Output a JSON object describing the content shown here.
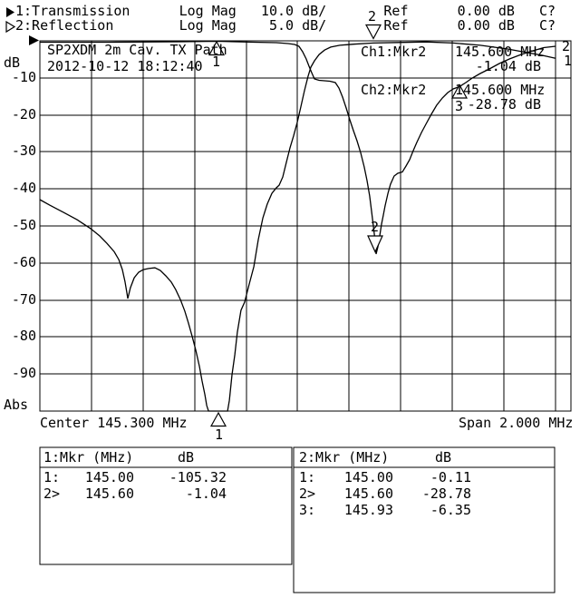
{
  "header": {
    "line1_text": "1:Transmission      Log Mag   10.0 dB/       Ref      0.00 dB   C?",
    "line2_text": "2:Reflection        Log Mag    5.0 dB/       Ref      0.00 dB   C?"
  },
  "graph": {
    "y_unit_label": "dB",
    "y_bottom_label": "Abs",
    "info_line1": "SP2XDM 2m Cav. TX Path",
    "info_line2": "2012-10-12 18:12:40",
    "ch1_readout": {
      "label": "Ch1:Mkr2",
      "freq": "145.600 MHz",
      "value": "-1.04 dB"
    },
    "ch2_readout": {
      "label": "Ch2:Mkr2",
      "freq": "145.600 MHz",
      "value": "-28.78 dB"
    },
    "trace_end_labels": {
      "trace1": "1",
      "trace2": "2"
    },
    "marker_digits": {
      "t1m1": "1",
      "t1m2": "2",
      "t2m1": "1",
      "t2m2": "2",
      "t2m3": "3"
    },
    "x_axis_left": "Center 145.300 MHz",
    "x_axis_right": "Span 2.000 MHz"
  },
  "tables": {
    "ch1": {
      "header_label": "1:Mkr (MHz)",
      "header_db": "dB",
      "rows": [
        [
          "1:",
          "145.00",
          "-105.32"
        ],
        [
          "2>",
          "145.60",
          "-1.04"
        ]
      ]
    },
    "ch2": {
      "header_label": "2:Mkr (MHz)",
      "header_db": "dB",
      "rows": [
        [
          "1:",
          "145.00",
          "-0.11"
        ],
        [
          "2>",
          "145.60",
          "-28.78"
        ],
        [
          "3:",
          "145.93",
          "-6.35"
        ]
      ]
    }
  },
  "chart_data": {
    "type": "line",
    "title": "SP2XDM 2m Cav. TX Path",
    "x_axis": {
      "center_mhz": 145.3,
      "span_mhz": 2.0,
      "start_mhz": 144.3,
      "stop_mhz": 146.3,
      "divisions": 10
    },
    "y_axis": {
      "ref_db": 0.0,
      "divisions": 10,
      "tick_labels": [
        "-10",
        "-20",
        "-30",
        "-40",
        "-50",
        "-60",
        "-70",
        "-80",
        "-90"
      ]
    },
    "markers": [
      {
        "trace": 1,
        "num": 1,
        "mhz": 145.0,
        "db": -105.32
      },
      {
        "trace": 1,
        "num": 2,
        "mhz": 145.6,
        "db": -1.04
      },
      {
        "trace": 2,
        "num": 1,
        "mhz": 145.0,
        "db": -0.11
      },
      {
        "trace": 2,
        "num": 2,
        "mhz": 145.6,
        "db": -28.78
      },
      {
        "trace": 2,
        "num": 3,
        "mhz": 145.93,
        "db": -6.35
      }
    ],
    "series": [
      {
        "name": "Transmission",
        "db_per_div": 10.0,
        "points": [
          [
            144.3,
            -42.9
          ],
          [
            144.339,
            -44.4
          ],
          [
            144.391,
            -46.3
          ],
          [
            144.444,
            -48.3
          ],
          [
            144.497,
            -50.7
          ],
          [
            144.532,
            -52.7
          ],
          [
            144.56,
            -54.7
          ],
          [
            144.588,
            -56.9
          ],
          [
            144.606,
            -59.1
          ],
          [
            144.62,
            -61.8
          ],
          [
            144.63,
            -65.0
          ],
          [
            144.637,
            -67.9
          ],
          [
            144.641,
            -69.6
          ],
          [
            144.651,
            -66.7
          ],
          [
            144.666,
            -64.0
          ],
          [
            144.683,
            -62.5
          ],
          [
            144.701,
            -61.8
          ],
          [
            144.722,
            -61.5
          ],
          [
            144.746,
            -61.3
          ],
          [
            144.767,
            -62.0
          ],
          [
            144.789,
            -63.5
          ],
          [
            144.81,
            -65.2
          ],
          [
            144.827,
            -67.2
          ],
          [
            144.845,
            -69.9
          ],
          [
            144.862,
            -73.0
          ],
          [
            144.876,
            -76.2
          ],
          [
            144.89,
            -79.7
          ],
          [
            144.905,
            -83.6
          ],
          [
            144.919,
            -88.0
          ],
          [
            144.929,
            -91.9
          ],
          [
            144.94,
            -95.6
          ],
          [
            144.947,
            -98.5
          ],
          [
            144.954,
            -100.0
          ],
          [
            145.028,
            -100.0
          ],
          [
            145.035,
            -97.1
          ],
          [
            145.045,
            -90.2
          ],
          [
            145.056,
            -84.8
          ],
          [
            145.066,
            -78.7
          ],
          [
            145.08,
            -72.8
          ],
          [
            145.094,
            -70.6
          ],
          [
            145.112,
            -65.7
          ],
          [
            145.13,
            -61.0
          ],
          [
            145.147,
            -53.7
          ],
          [
            145.165,
            -47.8
          ],
          [
            145.182,
            -44.1
          ],
          [
            145.2,
            -41.2
          ],
          [
            145.217,
            -39.7
          ],
          [
            145.228,
            -39.0
          ],
          [
            145.242,
            -36.8
          ],
          [
            145.256,
            -32.8
          ],
          [
            145.27,
            -28.9
          ],
          [
            145.284,
            -25.7
          ],
          [
            145.298,
            -22.1
          ],
          [
            145.312,
            -17.9
          ],
          [
            145.326,
            -13.5
          ],
          [
            145.34,
            -9.6
          ],
          [
            145.351,
            -7.1
          ],
          [
            145.365,
            -5.4
          ],
          [
            145.383,
            -3.7
          ],
          [
            145.404,
            -2.5
          ],
          [
            145.428,
            -1.7
          ],
          [
            145.463,
            -1.2
          ],
          [
            145.516,
            -0.9
          ],
          [
            145.594,
            -0.6
          ],
          [
            145.692,
            -0.45
          ],
          [
            145.797,
            -0.3
          ],
          [
            145.903,
            -0.6
          ],
          [
            146.008,
            -1.2
          ],
          [
            146.114,
            -2.2
          ],
          [
            146.184,
            -3.1
          ],
          [
            146.247,
            -3.9
          ],
          [
            146.3,
            -4.7
          ]
        ]
      },
      {
        "name": "Reflection",
        "db_per_div": 5.0,
        "points": [
          [
            144.3,
            -0.18
          ],
          [
            144.567,
            -0.18
          ],
          [
            144.848,
            -0.12
          ],
          [
            144.989,
            -0.06
          ],
          [
            145.13,
            -0.18
          ],
          [
            145.217,
            -0.25
          ],
          [
            145.263,
            -0.37
          ],
          [
            145.288,
            -0.49
          ],
          [
            145.305,
            -0.74
          ],
          [
            145.319,
            -1.47
          ],
          [
            145.333,
            -2.45
          ],
          [
            145.344,
            -3.43
          ],
          [
            145.354,
            -4.29
          ],
          [
            145.365,
            -5.15
          ],
          [
            145.383,
            -5.33
          ],
          [
            145.404,
            -5.39
          ],
          [
            145.425,
            -5.45
          ],
          [
            145.446,
            -5.64
          ],
          [
            145.46,
            -6.37
          ],
          [
            145.474,
            -7.6
          ],
          [
            145.488,
            -9.07
          ],
          [
            145.502,
            -10.66
          ],
          [
            145.516,
            -12.13
          ],
          [
            145.53,
            -13.48
          ],
          [
            145.544,
            -15.07
          ],
          [
            145.558,
            -17.03
          ],
          [
            145.569,
            -18.87
          ],
          [
            145.579,
            -20.96
          ],
          [
            145.586,
            -22.92
          ],
          [
            145.594,
            -25.12
          ],
          [
            145.601,
            -27.21
          ],
          [
            145.604,
            -28.8
          ],
          [
            145.611,
            -27.82
          ],
          [
            145.618,
            -26.35
          ],
          [
            145.625,
            -24.75
          ],
          [
            145.632,
            -23.53
          ],
          [
            145.639,
            -22.3
          ],
          [
            145.65,
            -20.59
          ],
          [
            145.66,
            -19.36
          ],
          [
            145.674,
            -18.26
          ],
          [
            145.688,
            -17.89
          ],
          [
            145.706,
            -17.71
          ],
          [
            145.72,
            -16.91
          ],
          [
            145.734,
            -16.05
          ],
          [
            145.748,
            -14.83
          ],
          [
            145.762,
            -13.73
          ],
          [
            145.78,
            -12.38
          ],
          [
            145.797,
            -11.27
          ],
          [
            145.818,
            -9.93
          ],
          [
            145.839,
            -8.7
          ],
          [
            145.861,
            -7.72
          ],
          [
            145.882,
            -6.99
          ],
          [
            145.903,
            -6.5
          ],
          [
            145.927,
            -6.19
          ],
          [
            145.952,
            -5.64
          ],
          [
            145.977,
            -5.02
          ],
          [
            146.008,
            -4.41
          ],
          [
            146.043,
            -3.8
          ],
          [
            146.082,
            -3.06
          ],
          [
            146.121,
            -2.45
          ],
          [
            146.167,
            -1.84
          ],
          [
            146.212,
            -1.35
          ],
          [
            146.254,
            -0.92
          ],
          [
            146.3,
            -0.74
          ]
        ]
      }
    ]
  }
}
